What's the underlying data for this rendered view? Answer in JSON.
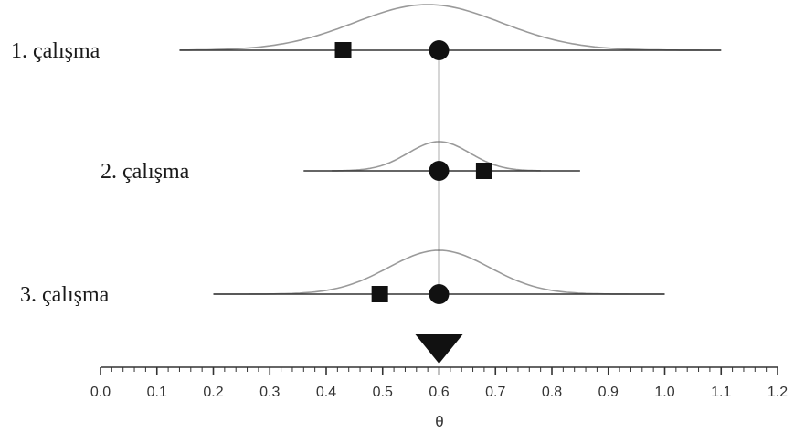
{
  "chart_data": {
    "type": "forest",
    "xlabel": "θ",
    "xlim": [
      0.0,
      1.2
    ],
    "x_ticks": [
      "0.0",
      "0.1",
      "0.2",
      "0.3",
      "0.4",
      "0.5",
      "0.6",
      "0.7",
      "0.8",
      "0.9",
      "1.0",
      "1.1",
      "1.2"
    ],
    "pooled_estimate": 0.6,
    "studies": [
      {
        "label": "1. çalışma",
        "observed": 0.43,
        "shrunk": 0.6,
        "ci": [
          0.14,
          1.1
        ],
        "density_peak": 0.58,
        "density_sd": 0.13,
        "density_range": [
          0.14,
          1.1
        ]
      },
      {
        "label": "2. çalışma",
        "observed": 0.68,
        "shrunk": 0.6,
        "ci": [
          0.36,
          0.85
        ],
        "density_peak": 0.6,
        "density_sd": 0.055,
        "density_range": [
          0.41,
          0.78
        ]
      },
      {
        "label": "3. çalışma",
        "observed": 0.495,
        "shrunk": 0.6,
        "ci": [
          0.2,
          1.0
        ],
        "density_peak": 0.6,
        "density_sd": 0.09,
        "density_range": [
          0.2,
          1.0
        ]
      }
    ],
    "colors": {
      "marker": "#111111",
      "line": "#333333",
      "density": "#9a9a9a",
      "axis": "#333333"
    }
  }
}
